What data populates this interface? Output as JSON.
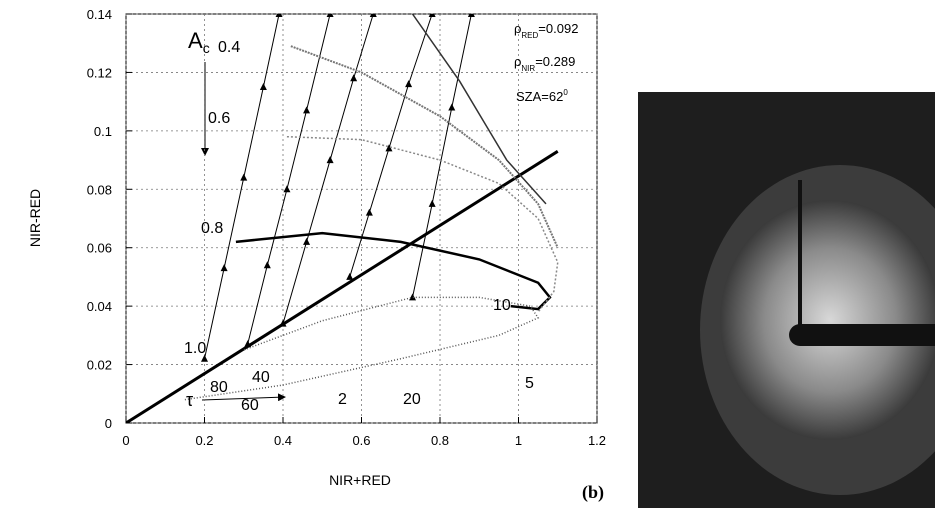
{
  "chart_data": {
    "type": "line",
    "xlabel": "NIR+RED",
    "ylabel": "NIR-RED",
    "xlim": [
      0,
      1.2
    ],
    "xticks": [
      0,
      0.2,
      0.4,
      0.6,
      0.8,
      1,
      1.2
    ],
    "ylim": [
      0,
      0.14
    ],
    "yticks": [
      0,
      0.02,
      0.04,
      0.06,
      0.08,
      0.1,
      0.12,
      0.14
    ],
    "grid": true,
    "series": [
      {
        "color": "#000",
        "width": 3,
        "x": [
          0,
          1.1
        ],
        "values": [
          0,
          0.093
        ]
      },
      {
        "color": "#000",
        "width": 1,
        "marker": "triangle",
        "x": [
          0.2,
          0.25,
          0.3,
          0.35,
          0.39
        ],
        "values": [
          0.022,
          0.053,
          0.084,
          0.115,
          0.14
        ]
      },
      {
        "color": "#000",
        "width": 1,
        "marker": "triangle",
        "x": [
          0.31,
          0.36,
          0.41,
          0.46,
          0.52
        ],
        "values": [
          0.027,
          0.054,
          0.08,
          0.107,
          0.14
        ]
      },
      {
        "color": "#000",
        "width": 1,
        "marker": "triangle",
        "x": [
          0.4,
          0.46,
          0.52,
          0.58,
          0.63
        ],
        "values": [
          0.034,
          0.062,
          0.09,
          0.118,
          0.14
        ]
      },
      {
        "color": "#000",
        "width": 1,
        "marker": "triangle",
        "x": [
          0.57,
          0.62,
          0.67,
          0.72,
          0.78
        ],
        "values": [
          0.05,
          0.072,
          0.094,
          0.116,
          0.14
        ]
      },
      {
        "color": "#000",
        "width": 1,
        "marker": "triangle",
        "x": [
          0.73,
          0.78,
          0.83,
          0.88
        ],
        "values": [
          0.043,
          0.075,
          0.108,
          0.14
        ]
      },
      {
        "color": "#000",
        "width": 2.5,
        "x": [
          0.28,
          0.5,
          0.7,
          0.9,
          1.05,
          1.08,
          1.05,
          0.98
        ],
        "values": [
          0.062,
          0.065,
          0.062,
          0.056,
          0.048,
          0.043,
          0.039,
          0.04
        ]
      },
      {
        "color": "#888",
        "width": 1.5,
        "dash": "2 2",
        "x": [
          0.41,
          0.6,
          0.8,
          0.95,
          1.05,
          1.1,
          1.09,
          1.05
        ],
        "values": [
          0.098,
          0.097,
          0.09,
          0.082,
          0.07,
          0.055,
          0.045,
          0.038
        ]
      },
      {
        "color": "#777",
        "width": 2,
        "dash": "2 1",
        "x": [
          0.42,
          0.6,
          0.8,
          0.95,
          1.05,
          1.1
        ],
        "values": [
          0.129,
          0.12,
          0.105,
          0.09,
          0.075,
          0.06
        ]
      },
      {
        "color": "#333",
        "width": 1.5,
        "x": [
          0.73,
          0.85,
          0.97,
          1.07
        ],
        "values": [
          0.14,
          0.117,
          0.09,
          0.075
        ]
      },
      {
        "color": "#555",
        "width": 1.5,
        "dash": "1 2",
        "x": [
          0.15,
          0.4,
          0.7,
          0.95,
          1.05,
          1.03,
          0.9,
          0.73,
          0.5,
          0.3
        ],
        "values": [
          0.008,
          0.013,
          0.022,
          0.03,
          0.036,
          0.04,
          0.043,
          0.043,
          0.035,
          0.025
        ]
      }
    ],
    "annotations": [
      {
        "text": "A",
        "sub": "c"
      },
      {
        "text": "0.4"
      },
      {
        "text": "0.6"
      },
      {
        "text": "0.8"
      },
      {
        "text": "1.0"
      },
      {
        "text": "10"
      },
      {
        "text": "20"
      },
      {
        "text": "40"
      },
      {
        "text": "60"
      },
      {
        "text": "80"
      },
      {
        "text": "5"
      },
      {
        "text": "2"
      },
      {
        "text": "τ"
      },
      {
        "text": "ρ",
        "sub": "RED",
        "after": "=0.092"
      },
      {
        "text": "ρ",
        "sub": "NIR",
        "after": "=0.289"
      },
      {
        "text": "SZA=62",
        "sup": "0"
      }
    ],
    "panel_label": "(b)"
  }
}
